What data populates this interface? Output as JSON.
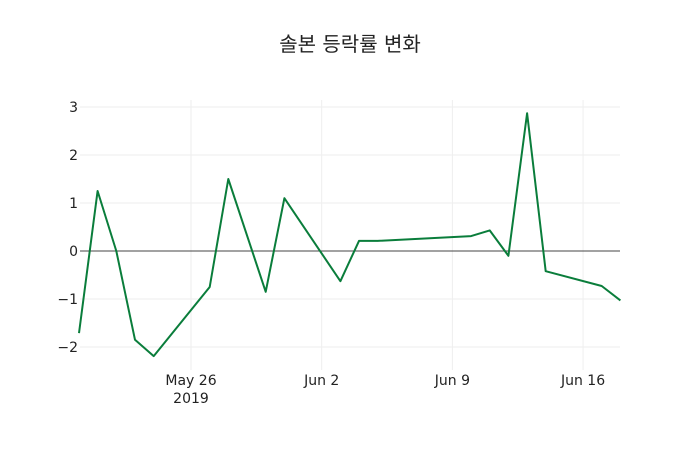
{
  "chart_data": {
    "type": "line",
    "title": "솔본 등락률 변화",
    "xlabel": "",
    "ylabel": "",
    "x": [
      "2019-05-20",
      "2019-05-21",
      "2019-05-22",
      "2019-05-23",
      "2019-05-24",
      "2019-05-27",
      "2019-05-28",
      "2019-05-30",
      "2019-05-31",
      "2019-06-03",
      "2019-06-04",
      "2019-06-05",
      "2019-06-10",
      "2019-06-11",
      "2019-06-12",
      "2019-06-13",
      "2019-06-14",
      "2019-06-17",
      "2019-06-18"
    ],
    "series": [
      {
        "name": "등락률",
        "color": "#0a7d3b",
        "values": [
          -1.71,
          1.25,
          0.0,
          -1.85,
          -2.19,
          -0.75,
          1.5,
          -0.85,
          1.1,
          -0.63,
          0.21,
          0.21,
          0.31,
          0.43,
          -0.1,
          2.87,
          -0.42,
          -0.73,
          -1.03
        ]
      }
    ],
    "ylim": [
      -2.45,
      3.15
    ],
    "yticks": [
      3,
      2,
      1,
      0,
      -1,
      -2
    ],
    "ytick_labels": [
      "3",
      "2",
      "1",
      "0",
      "−1",
      "−2"
    ],
    "xticks": [
      {
        "date": "2019-05-26",
        "label": "May 26",
        "sublabel": "2019"
      },
      {
        "date": "2019-06-02",
        "label": "Jun 2"
      },
      {
        "date": "2019-06-09",
        "label": "Jun 9"
      },
      {
        "date": "2019-06-16",
        "label": "Jun 16"
      }
    ],
    "grid": true,
    "zeroline": true,
    "legend": "none"
  }
}
